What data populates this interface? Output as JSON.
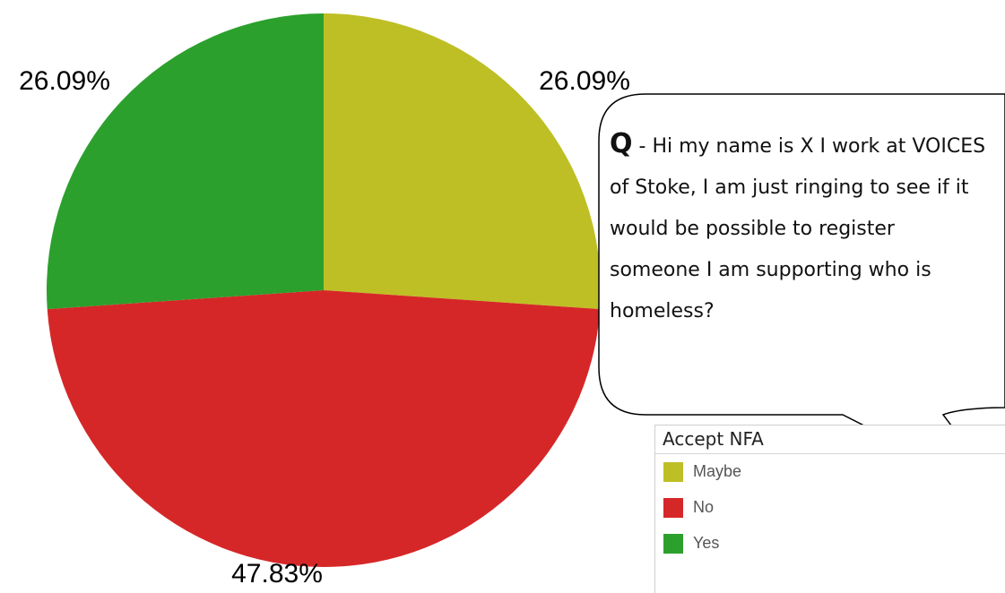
{
  "chart_data": {
    "type": "pie",
    "title": "",
    "legend_title": "Accept NFA",
    "legend_position": "bottom-right",
    "slices": [
      {
        "label": "Maybe",
        "value": 26.09,
        "label_text": "26.09%",
        "color": "#bebf25"
      },
      {
        "label": "No",
        "value": 47.83,
        "label_text": "47.83%",
        "color": "#d62728"
      },
      {
        "label": "Yes",
        "value": 26.09,
        "label_text": "26.09%",
        "color": "#2ca02c"
      }
    ]
  },
  "bubble": {
    "q_label": "Q",
    "text": " - Hi my name is X I work at VOICES of Stoke, I am just ringing to see if it would be possible to register someone I am supporting who is homeless?"
  }
}
